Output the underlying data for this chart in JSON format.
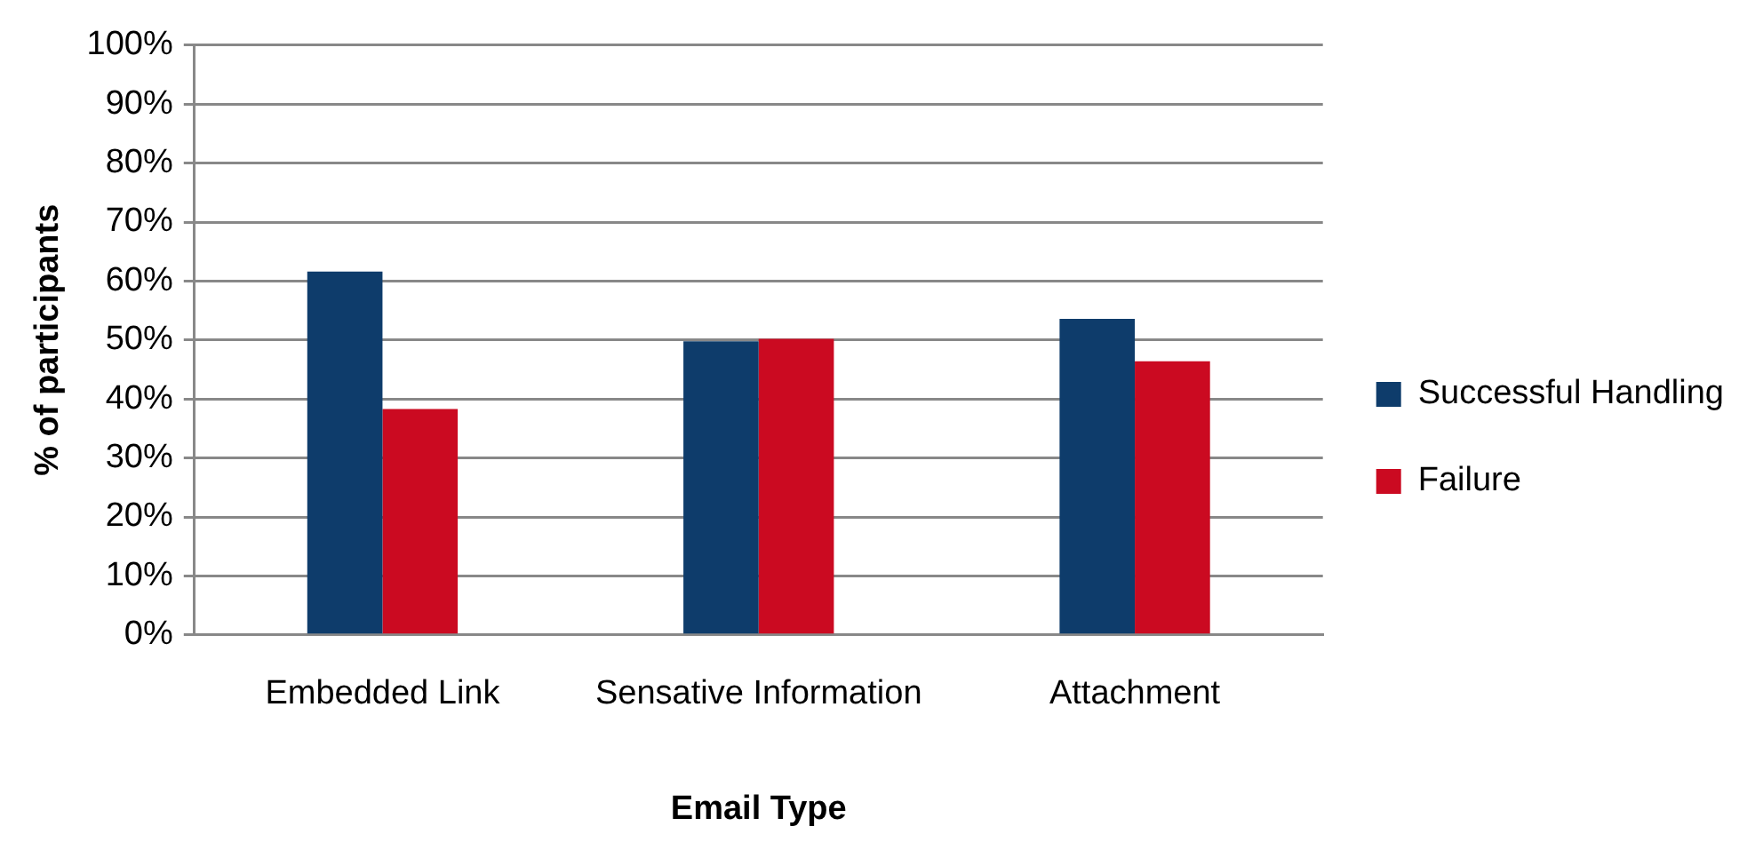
{
  "chart_data": {
    "type": "bar",
    "xlabel": "Email Type",
    "ylabel": "% of participants",
    "categories": [
      "Embedded Link",
      "Sensative Information",
      "Attachment"
    ],
    "series": [
      {
        "name": "Successful Handling",
        "color": "#0e3c6b",
        "values": [
          61.6,
          49.8,
          53.6
        ]
      },
      {
        "name": "Failure",
        "color": "#cb0a21",
        "values": [
          38.3,
          50.2,
          46.4
        ]
      }
    ],
    "ylim": [
      0,
      100
    ],
    "yticks": [
      {
        "value": 0,
        "label": "0%"
      },
      {
        "value": 10,
        "label": "10%"
      },
      {
        "value": 20,
        "label": "20%"
      },
      {
        "value": 30,
        "label": "30%"
      },
      {
        "value": 40,
        "label": "40%"
      },
      {
        "value": 50,
        "label": "50%"
      },
      {
        "value": 60,
        "label": "60%"
      },
      {
        "value": 70,
        "label": "70%"
      },
      {
        "value": 80,
        "label": "80%"
      },
      {
        "value": 90,
        "label": "90%"
      },
      {
        "value": 100,
        "label": "100%"
      }
    ],
    "grid": "y",
    "legend": "right"
  }
}
